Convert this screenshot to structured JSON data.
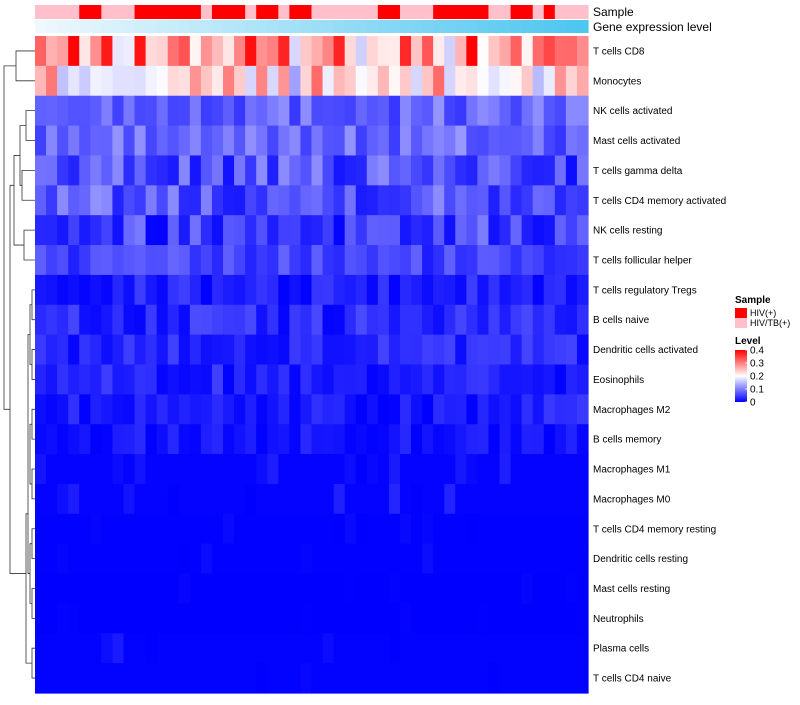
{
  "chart_data": {
    "type": "heatmap",
    "annotation_tracks": [
      {
        "name": "Sample",
        "kind": "categorical"
      },
      {
        "name": "Gene expression level",
        "kind": "gradient",
        "colors": [
          "#eef8fd",
          "#4dc6f0"
        ]
      }
    ],
    "sample_groups": [
      "HIV/TB(+)",
      "HIV/TB(+)",
      "HIV/TB(+)",
      "HIV/TB(+)",
      "HIV(+)",
      "HIV(+)",
      "HIV/TB(+)",
      "HIV/TB(+)",
      "HIV/TB(+)",
      "HIV(+)",
      "HIV(+)",
      "HIV(+)",
      "HIV(+)",
      "HIV(+)",
      "HIV(+)",
      "HIV/TB(+)",
      "HIV(+)",
      "HIV(+)",
      "HIV(+)",
      "HIV/TB(+)",
      "HIV(+)",
      "HIV(+)",
      "HIV/TB(+)",
      "HIV(+)",
      "HIV(+)",
      "HIV/TB(+)",
      "HIV/TB(+)",
      "HIV/TB(+)",
      "HIV/TB(+)",
      "HIV/TB(+)",
      "HIV/TB(+)",
      "HIV(+)",
      "HIV(+)",
      "HIV/TB(+)",
      "HIV/TB(+)",
      "HIV/TB(+)",
      "HIV(+)",
      "HIV(+)",
      "HIV(+)",
      "HIV(+)",
      "HIV(+)",
      "HIV/TB(+)",
      "HIV/TB(+)",
      "HIV(+)",
      "HIV(+)",
      "HIV/TB(+)",
      "HIV(+)",
      "HIV/TB(+)",
      "HIV/TB(+)",
      "HIV/TB(+)"
    ],
    "rows": [
      "T cells CD8",
      "Monocytes",
      "NK cells activated",
      "Mast cells activated",
      "T cells gamma delta",
      "T cells CD4 memory activated",
      "NK cells resting",
      "T cells follicular helper",
      "T cells regulatory  Tregs",
      "B cells naive",
      "Dendritic cells activated",
      "Eosinophils",
      "Macrophages M2",
      "B cells memory",
      "Macrophages M1",
      "Macrophages M0",
      "T cells CD4 memory resting",
      "Dendritic cells resting",
      "Mast cells resting",
      "Neutrophils",
      "Plasma cells",
      "T cells CD4 naive"
    ],
    "row_means": [
      0.28,
      0.22,
      0.08,
      0.08,
      0.06,
      0.07,
      0.05,
      0.05,
      0.025,
      0.03,
      0.03,
      0.025,
      0.02,
      0.015,
      0.01,
      0.012,
      0.003,
      0.003,
      0.001,
      0.001,
      0.006,
      0.006
    ],
    "row_spread": [
      0.12,
      0.1,
      0.04,
      0.04,
      0.05,
      0.05,
      0.05,
      0.03,
      0.025,
      0.03,
      0.025,
      0.025,
      0.025,
      0.02,
      0.02,
      0.02,
      0.01,
      0.01,
      0.004,
      0.002,
      0.015,
      0.015
    ],
    "value_range": [
      0,
      0.4
    ],
    "legend": {
      "sample_title": "Sample",
      "sample_entries": [
        {
          "label": "HIV(+)",
          "color": "#ff0000"
        },
        {
          "label": "HIV/TB(+)",
          "color": "#ffc0cb"
        }
      ],
      "level_title": "Level",
      "level_ticks": [
        "0.4",
        "0.3",
        "0.2",
        "0.1",
        "0"
      ],
      "level_values": [
        0.4,
        0.3,
        0.2,
        0.1,
        0
      ],
      "gradient": [
        "#0000ff",
        "#ffffff",
        "#ff0000"
      ]
    }
  }
}
